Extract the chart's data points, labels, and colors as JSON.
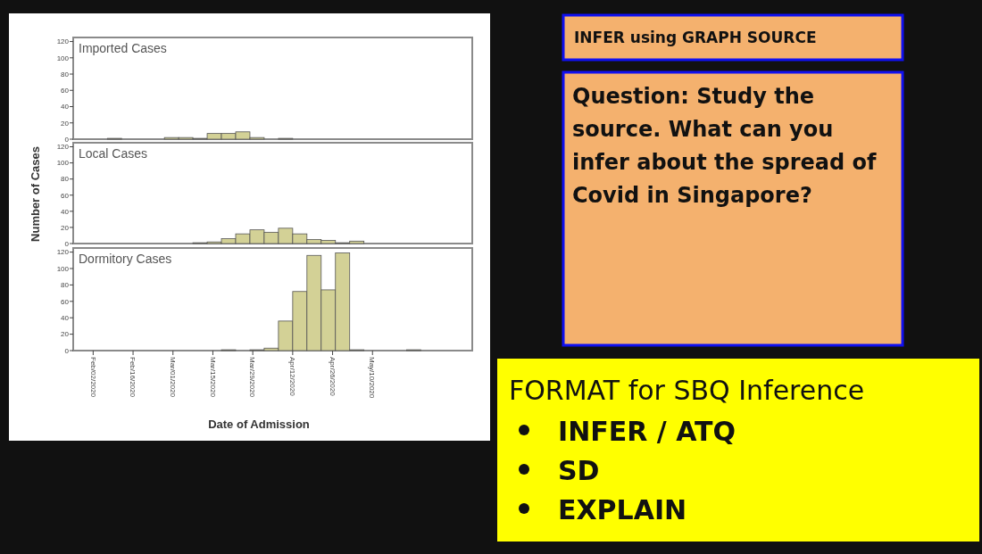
{
  "chart_data": [
    {
      "type": "histogram",
      "title": "Imported Cases",
      "color": "#d3d196",
      "tick_labels": "y",
      "xlim": [
        "2020-01-26",
        "2020-06-14"
      ],
      "ylim": [
        0,
        125
      ],
      "yticks": [
        0,
        20,
        40,
        60,
        80,
        100,
        120
      ],
      "bins": [
        "2020-01-28",
        "2020-02-02",
        "2020-02-07",
        "2020-02-12",
        "2020-02-17",
        "2020-02-22",
        "2020-02-27",
        "2020-03-03",
        "2020-03-08",
        "2020-03-13",
        "2020-03-18",
        "2020-03-23",
        "2020-03-28",
        "2020-04-02",
        "2020-04-07",
        "2020-04-12",
        "2020-04-17",
        "2020-04-22",
        "2020-04-27",
        "2020-05-02",
        "2020-05-07",
        "2020-05-12",
        "2020-05-17",
        "2020-05-22",
        "2020-05-27",
        "2020-06-01",
        "2020-06-06",
        "2020-06-11"
      ],
      "values": [
        0,
        0,
        1,
        0,
        0,
        0,
        2,
        2,
        1,
        7,
        7,
        9,
        2,
        0,
        1,
        0,
        0,
        0,
        0,
        0,
        0,
        0,
        0,
        0,
        0,
        0,
        0
      ]
    },
    {
      "type": "histogram",
      "title": "Local Cases",
      "ylabel": "Number of Cases",
      "color": "#d3d196",
      "tick_labels": "y",
      "xlim": [
        "2020-01-26",
        "2020-06-14"
      ],
      "ylim": [
        0,
        125
      ],
      "yticks": [
        0,
        20,
        40,
        60,
        80,
        100,
        120
      ],
      "bins": [
        "2020-01-28",
        "2020-02-02",
        "2020-02-07",
        "2020-02-12",
        "2020-02-17",
        "2020-02-22",
        "2020-02-27",
        "2020-03-03",
        "2020-03-08",
        "2020-03-13",
        "2020-03-18",
        "2020-03-23",
        "2020-03-28",
        "2020-04-02",
        "2020-04-07",
        "2020-04-12",
        "2020-04-17",
        "2020-04-22",
        "2020-04-27",
        "2020-05-02",
        "2020-05-07",
        "2020-05-12",
        "2020-05-17",
        "2020-05-22",
        "2020-05-27",
        "2020-06-01",
        "2020-06-06",
        "2020-06-11"
      ],
      "values": [
        0,
        0,
        0,
        0,
        0,
        0,
        0,
        0,
        1,
        2,
        6,
        12,
        17,
        14,
        19,
        12,
        5,
        4,
        1,
        3,
        0,
        0,
        0,
        0,
        0,
        0,
        0
      ]
    },
    {
      "type": "histogram",
      "title": "Dormitory Cases",
      "xlabel": "Date of Admission",
      "color": "#d3d196",
      "xlim": [
        "2020-01-26",
        "2020-06-14"
      ],
      "ylim": [
        0,
        125
      ],
      "yticks": [
        0,
        20,
        40,
        60,
        80,
        100,
        120
      ],
      "xticks": [
        {
          "value": "2020-02-02",
          "label": "Feb/02/2020"
        },
        {
          "value": "2020-02-16",
          "label": "Feb/16/2020"
        },
        {
          "value": "2020-03-01",
          "label": "Mar/01/2020"
        },
        {
          "value": "2020-03-15",
          "label": "Mar/15/2020"
        },
        {
          "value": "2020-03-29",
          "label": "Mar/29/2020"
        },
        {
          "value": "2020-04-12",
          "label": "Apr/12/2020"
        },
        {
          "value": "2020-04-26",
          "label": "Apr/26/2020"
        },
        {
          "value": "2020-05-10",
          "label": "May/10/2020"
        }
      ],
      "bins": [
        "2020-01-28",
        "2020-02-02",
        "2020-02-07",
        "2020-02-12",
        "2020-02-17",
        "2020-02-22",
        "2020-02-27",
        "2020-03-03",
        "2020-03-08",
        "2020-03-13",
        "2020-03-18",
        "2020-03-23",
        "2020-03-28",
        "2020-04-02",
        "2020-04-07",
        "2020-04-12",
        "2020-04-17",
        "2020-04-22",
        "2020-04-27",
        "2020-05-02",
        "2020-05-07",
        "2020-05-12",
        "2020-05-17",
        "2020-05-22",
        "2020-05-27",
        "2020-06-01",
        "2020-06-06",
        "2020-06-11"
      ],
      "values": [
        0,
        0,
        0,
        0,
        0,
        0,
        0,
        0,
        0,
        0,
        1,
        0,
        1,
        3,
        36,
        72,
        116,
        74,
        119,
        1,
        0,
        0,
        0,
        1,
        0,
        0,
        0
      ]
    },
    {
      "type": "other",
      "title": "INFER using GRAPH SOURCE",
      "annotations": [
        "Question: Study the source. What can you infer about the spread of Covid in Singapore?",
        "FORMAT for SBQ Inference",
        "INFER / ATQ",
        "SD",
        "EXPLAIN"
      ]
    }
  ]
}
